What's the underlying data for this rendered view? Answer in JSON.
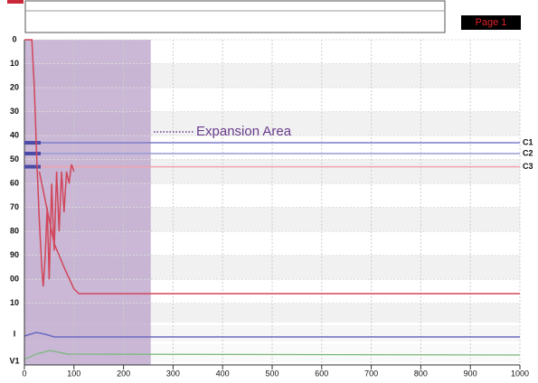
{
  "chart_data": {
    "type": "line",
    "page_label": "Page 1",
    "annotation": "Expansion Area",
    "expansion_x": [
      0,
      255
    ],
    "xlim": [
      0,
      1000
    ],
    "xticks": [
      0,
      100,
      200,
      300,
      400,
      500,
      600,
      700,
      800,
      900,
      1000
    ],
    "ylim": [
      0,
      118
    ],
    "yticks": [
      0,
      10,
      20,
      30,
      40,
      50,
      60,
      70,
      80,
      90,
      {
        "value": 100,
        "label": "00"
      },
      {
        "value": 110,
        "label": "10"
      }
    ],
    "lane_labels": [
      "I",
      "V1"
    ],
    "levels": [
      {
        "name": "C1",
        "value": 43,
        "color": "#7c7cc8"
      },
      {
        "name": "C2",
        "value": 47.5,
        "color": "#9a9ad6"
      },
      {
        "name": "C3",
        "value": 53,
        "color": "#f2a4ae"
      }
    ],
    "series": [
      {
        "color": "#d2465a",
        "x": [
          0,
          15,
          20,
          25,
          30,
          35,
          38,
          42,
          46,
          50,
          55,
          60,
          65,
          70,
          75,
          80,
          85,
          90,
          95,
          100
        ],
        "values": [
          0,
          0,
          20,
          50,
          75,
          95,
          103,
          90,
          70,
          100,
          60,
          88,
          55,
          80,
          55,
          72,
          55,
          60,
          52,
          55
        ]
      },
      {
        "color": "#d2465a",
        "x": [
          30,
          45,
          60,
          80,
          100,
          110,
          1000
        ],
        "values": [
          55,
          70,
          85,
          95,
          104,
          106,
          106
        ]
      }
    ]
  }
}
